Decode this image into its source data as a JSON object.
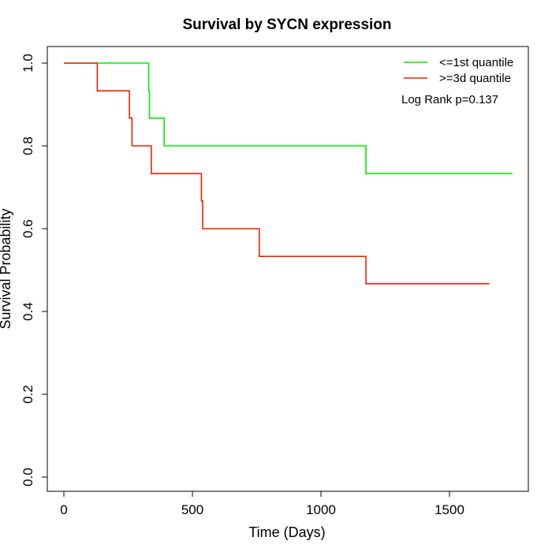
{
  "chart_data": {
    "type": "line",
    "title": "Survival by SYCN expression",
    "xlabel": "Time (Days)",
    "ylabel": "Survival Probability",
    "xlim": [
      0,
      1750
    ],
    "ylim": [
      0,
      1
    ],
    "x_ticks": [
      0,
      500,
      1000,
      1500
    ],
    "x_tick_labels": [
      "0",
      "500",
      "1000",
      "1500"
    ],
    "y_ticks": [
      0,
      0.2,
      0.4,
      0.6,
      0.8,
      1.0
    ],
    "y_tick_labels": [
      "0.0",
      "0.2",
      "0.4",
      "0.6",
      "0.8",
      "1.0"
    ],
    "grid": false,
    "legend_position": "top-right",
    "annotation": "Log Rank p=0.137",
    "series": [
      {
        "name": "<=1st quantile",
        "color": "#00ee00",
        "step": true,
        "x": [
          0,
          330,
          333,
          390,
          1175,
          1745
        ],
        "y": [
          1.0,
          0.933,
          0.867,
          0.8,
          0.733,
          0.733
        ]
      },
      {
        "name": ">=3d quantile",
        "color": "#ee2200",
        "step": true,
        "x": [
          0,
          130,
          255,
          265,
          340,
          535,
          540,
          760,
          1175,
          1655
        ],
        "y": [
          1.0,
          0.933,
          0.867,
          0.8,
          0.733,
          0.667,
          0.6,
          0.533,
          0.467,
          0.467
        ]
      }
    ]
  }
}
